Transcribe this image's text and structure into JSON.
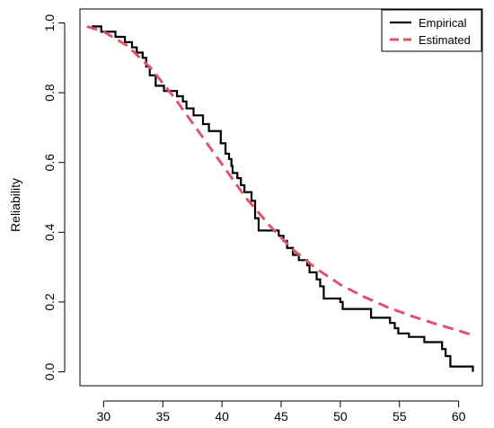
{
  "chart_data": {
    "type": "line",
    "xlabel": "",
    "ylabel": "Reliability",
    "xlim": [
      28.0,
      62.0
    ],
    "ylim": [
      -0.04,
      1.04
    ],
    "x_ticks": [
      30,
      35,
      40,
      45,
      50,
      55,
      60
    ],
    "y_ticks": [
      0.0,
      0.2,
      0.4,
      0.6,
      0.8,
      1.0
    ],
    "x_tick_labels": [
      "30",
      "35",
      "40",
      "45",
      "50",
      "55",
      "60"
    ],
    "y_tick_labels": [
      "0.0",
      "0.2",
      "0.4",
      "0.6",
      "0.8",
      "1.0"
    ],
    "grid": false,
    "legend_position": "top-right",
    "series": [
      {
        "name": "Empirical",
        "style": "step",
        "color": "#000000",
        "x": [
          29.0,
          29.8,
          31.0,
          31.8,
          32.4,
          32.8,
          33.3,
          33.6,
          33.9,
          34.4,
          35.1,
          36.2,
          36.7,
          37.0,
          37.6,
          38.4,
          38.9,
          39.9,
          40.3,
          40.6,
          40.8,
          40.9,
          41.3,
          41.6,
          41.9,
          42.5,
          42.8,
          43.1,
          44.8,
          45.2,
          45.5,
          46.0,
          46.5,
          47.2,
          47.4,
          48.0,
          48.3,
          48.6,
          50.0,
          50.2,
          52.6,
          54.2,
          54.6,
          54.9,
          55.8,
          57.1,
          58.6,
          58.9,
          59.3,
          61.2
        ],
        "y": [
          0.99,
          0.975,
          0.96,
          0.945,
          0.93,
          0.915,
          0.9,
          0.875,
          0.85,
          0.82,
          0.805,
          0.79,
          0.775,
          0.755,
          0.735,
          0.71,
          0.69,
          0.655,
          0.625,
          0.61,
          0.59,
          0.57,
          0.555,
          0.535,
          0.515,
          0.49,
          0.44,
          0.405,
          0.39,
          0.375,
          0.355,
          0.335,
          0.32,
          0.305,
          0.285,
          0.265,
          0.245,
          0.21,
          0.2,
          0.18,
          0.155,
          0.14,
          0.125,
          0.11,
          0.1,
          0.085,
          0.065,
          0.045,
          0.015,
          0.0
        ]
      },
      {
        "name": "Estimated",
        "style": "dashed",
        "color": "#DF536B",
        "x": [
          28.6,
          30.0,
          32.0,
          34.0,
          36.0,
          38.0,
          40.0,
          42.0,
          44.0,
          46.0,
          48.0,
          50.0,
          52.0,
          54.0,
          56.0,
          58.0,
          60.0,
          61.2
        ],
        "y": [
          0.99,
          0.975,
          0.935,
          0.87,
          0.785,
          0.69,
          0.595,
          0.5,
          0.42,
          0.35,
          0.295,
          0.25,
          0.215,
          0.185,
          0.16,
          0.138,
          0.118,
          0.105
        ]
      }
    ]
  }
}
